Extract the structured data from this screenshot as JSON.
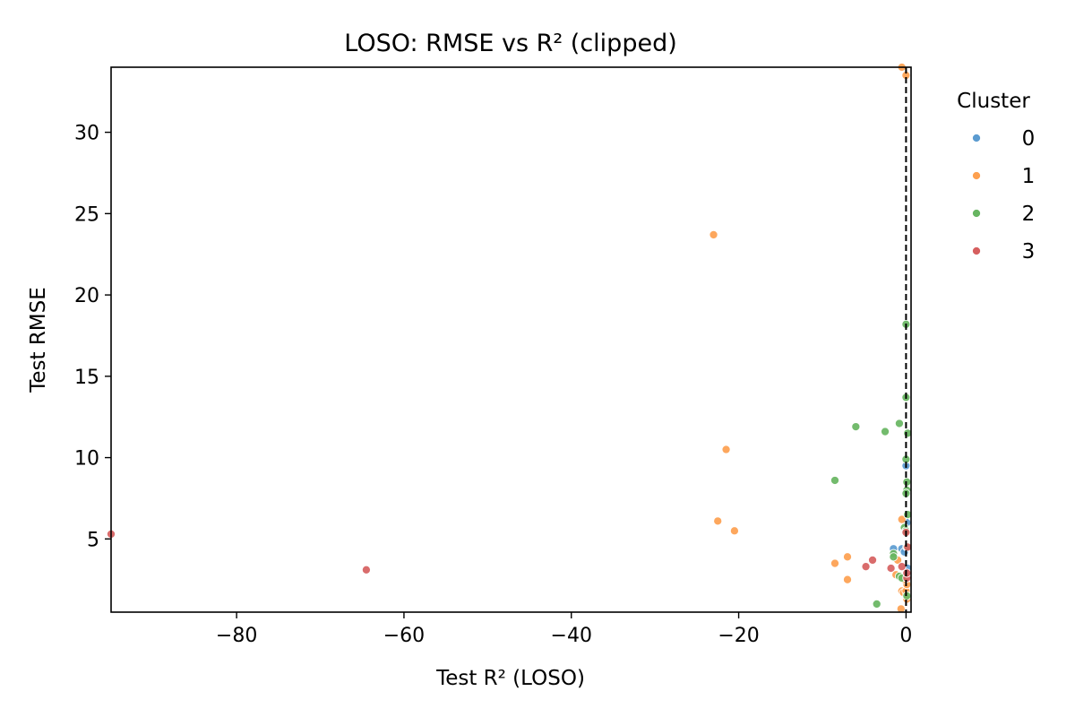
{
  "chart_data": {
    "type": "scatter",
    "title": "LOSO: RMSE vs R² (clipped)",
    "xlabel": "Test R² (LOSO)",
    "ylabel": "Test RMSE",
    "xlim": [
      -95,
      0.6
    ],
    "ylim": [
      0.5,
      34
    ],
    "xticks": [
      -80,
      -60,
      -40,
      -20,
      0
    ],
    "xtick_labels": [
      "−80",
      "−60",
      "−40",
      "−20",
      "0"
    ],
    "yticks": [
      5,
      10,
      15,
      20,
      25,
      30
    ],
    "ytick_labels": [
      "5",
      "10",
      "15",
      "20",
      "25",
      "30"
    ],
    "reference_line": {
      "x": 0,
      "style": "dashed",
      "color": "#000000"
    },
    "grid": false,
    "legend": {
      "title": "Cluster",
      "position": "outside-right"
    },
    "series": [
      {
        "name": "0",
        "color": "#5b9bd0",
        "points": [
          [
            -1.5,
            4.4
          ],
          [
            -0.5,
            4.4
          ],
          [
            0,
            9.5
          ],
          [
            -0.2,
            4.2
          ],
          [
            0.1,
            2.8
          ],
          [
            0.2,
            3.2
          ],
          [
            0.1,
            6.0
          ]
        ]
      },
      {
        "name": "1",
        "color": "#fda04f",
        "points": [
          [
            -23.0,
            23.7
          ],
          [
            -21.5,
            10.5
          ],
          [
            -22.5,
            6.1
          ],
          [
            -20.5,
            5.5
          ],
          [
            -8.5,
            3.5
          ],
          [
            -7.0,
            3.9
          ],
          [
            -7.0,
            2.5
          ],
          [
            -0.5,
            34.0
          ],
          [
            0,
            33.5
          ],
          [
            -0.5,
            6.2
          ],
          [
            -1.0,
            3.7
          ],
          [
            -1.2,
            2.8
          ],
          [
            -0.5,
            1.8
          ],
          [
            -0.3,
            1.7
          ],
          [
            0,
            1.8
          ],
          [
            0.1,
            2.2
          ],
          [
            -0.6,
            0.7
          ],
          [
            0.1,
            1.3
          ],
          [
            -0.2,
            2.5
          ]
        ]
      },
      {
        "name": "2",
        "color": "#67b561",
        "points": [
          [
            0,
            18.2
          ],
          [
            0,
            13.7
          ],
          [
            0.2,
            11.5
          ],
          [
            -0.8,
            12.1
          ],
          [
            -2.5,
            11.6
          ],
          [
            -6.0,
            11.9
          ],
          [
            -8.5,
            8.6
          ],
          [
            0,
            9.9
          ],
          [
            0.1,
            8.5
          ],
          [
            0.1,
            8.0
          ],
          [
            0,
            7.8
          ],
          [
            -0.2,
            5.7
          ],
          [
            0,
            5.5
          ],
          [
            0.1,
            4.5
          ],
          [
            -1.5,
            4.1
          ],
          [
            -1.5,
            3.9
          ],
          [
            -0.8,
            2.7
          ],
          [
            -0.5,
            2.6
          ],
          [
            -3.5,
            1.0
          ],
          [
            0.1,
            1.5
          ],
          [
            0.2,
            6.5
          ]
        ]
      },
      {
        "name": "3",
        "color": "#d65f5f",
        "points": [
          [
            -95,
            5.3
          ],
          [
            -64.5,
            3.1
          ],
          [
            -4.0,
            3.7
          ],
          [
            -4.8,
            3.3
          ],
          [
            -1.8,
            3.2
          ],
          [
            -0.5,
            3.3
          ],
          [
            0,
            5.4
          ],
          [
            0.2,
            4.5
          ],
          [
            0.1,
            2.6
          ],
          [
            0.1,
            2.9
          ]
        ]
      }
    ]
  }
}
